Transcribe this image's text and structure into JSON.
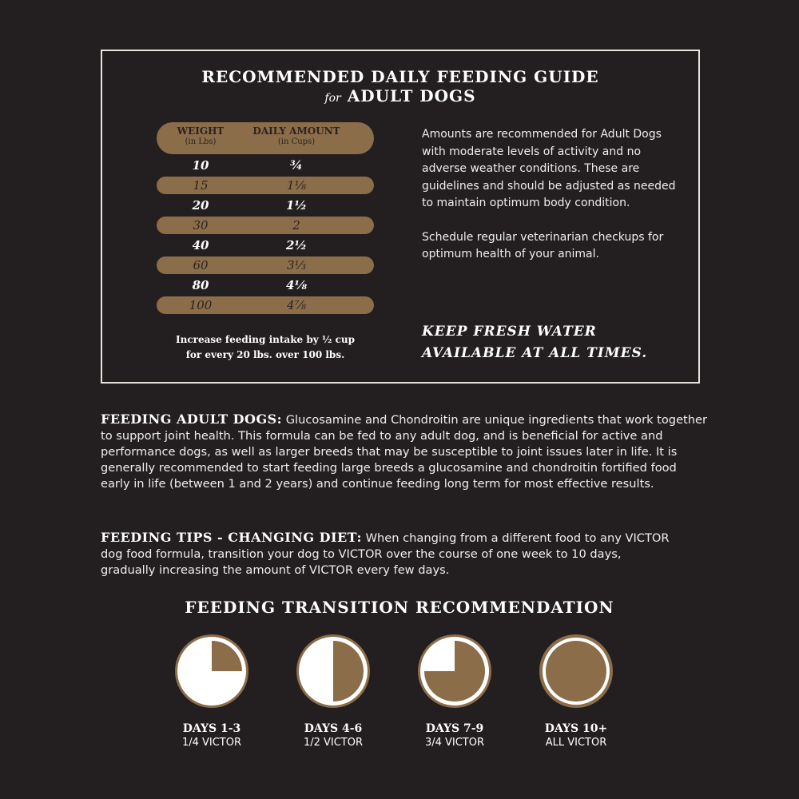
{
  "guide": {
    "title": "RECOMMENDED DAILY FEEDING GUIDE",
    "subtitle_for": "for",
    "subtitle": "ADULT DOGS",
    "table": {
      "headers": [
        {
          "label": "WEIGHT",
          "unit": "(in Lbs)"
        },
        {
          "label": "DAILY AMOUNT",
          "unit": "(in Cups)"
        }
      ],
      "rows": [
        [
          "10",
          "¾"
        ],
        [
          "15",
          "1⅛"
        ],
        [
          "20",
          "1½"
        ],
        [
          "30",
          "2"
        ],
        [
          "40",
          "2½"
        ],
        [
          "60",
          "3⅓"
        ],
        [
          "80",
          "4⅛"
        ],
        [
          "100",
          "4⅞"
        ]
      ]
    },
    "note_line1": "Increase feeding intake by ½ cup",
    "note_line2": "for every 20 lbs. over 100 lbs.",
    "side_text1": "Amounts are recommended for Adult Dogs with moderate levels of activity and no adverse weather conditions. These are guidelines and should be adjusted as needed to maintain optimum body condition.",
    "side_text2": "Schedule regular veterinarian checkups for optimum health of your animal.",
    "water_line1": "KEEP FRESH WATER",
    "water_line2": "AVAILABLE AT ALL TIMES."
  },
  "sections": [
    {
      "heading": "FEEDING ADULT DOGS:",
      "text": "Glucosamine and Chondroitin are unique ingredients that work together to support joint health. This formula can be fed to any adult dog, and is beneficial for active and performance dogs, as well as larger breeds that may be susceptible to joint issues later in life. It is generally recommended to start feeding large breeds a glucosamine and chondroitin fortified food early in life (between 1 and 2 years) and continue feeding long term for most effective results."
    },
    {
      "heading": "FEEDING TIPS - CHANGING DIET:",
      "text": "When changing from a different food to any VICTOR dog food formula, transition your dog to VICTOR over the course of one week to 10 days, gradually increasing the amount of VICTOR every few days."
    }
  ],
  "transition": {
    "title": "FEEDING TRANSITION RECOMMENDATION",
    "steps": [
      {
        "days": "DAYS 1-3",
        "label": "1/4 VICTOR",
        "fraction": 0.25
      },
      {
        "days": "DAYS 4-6",
        "label": "1/2 VICTOR",
        "fraction": 0.5
      },
      {
        "days": "DAYS 7-9",
        "label": "3/4 VICTOR",
        "fraction": 0.75
      },
      {
        "days": "DAYS 10+",
        "label": "ALL VICTOR",
        "fraction": 1
      }
    ]
  },
  "colors": {
    "background": "#231f20",
    "accent": "#8c6d4a",
    "text": "#ffffff"
  }
}
